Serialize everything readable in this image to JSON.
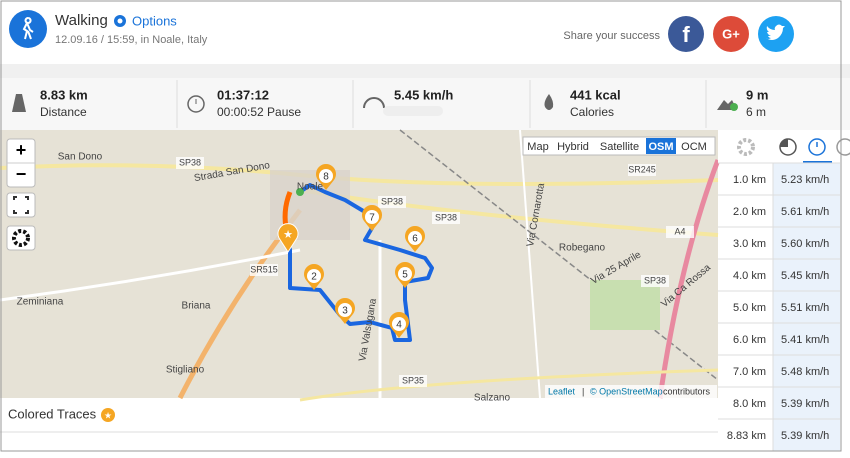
{
  "header": {
    "activity": "Walking",
    "options": "Options",
    "datetime": "12.09.16 / 15:59, in Noale, Italy",
    "share": "Share your success",
    "social": [
      "f",
      "G+"
    ]
  },
  "stats": [
    {
      "value": "8.83 km",
      "label": "Distance"
    },
    {
      "value": "01:37:12",
      "label": "00:00:52 Pause"
    },
    {
      "value": "5.45 km/h"
    },
    {
      "value": "441 kcal",
      "label": "Calories"
    },
    {
      "value": "9 m",
      "label": "6 m"
    }
  ],
  "map": {
    "zoom_in": "+",
    "zoom_out": "−",
    "layers": [
      "Map",
      "Hybrid",
      "Satellite",
      "OSM",
      "OCM"
    ],
    "active_layer": "OSM",
    "attribution_link": "Leaflet",
    "attribution_sep": "|",
    "attribution": "© OpenStreetMap",
    "attribution_suffix": "contributors",
    "places": [
      "San Dono",
      "SP38",
      "Strada San Dono",
      "Noale",
      "SP38",
      "SP38",
      "SR245",
      "Robegano",
      "Via Cornarotta",
      "Via 25 Aprile",
      "A4",
      "Via Ca Rossa",
      "SR515",
      "Zeminiana",
      "Briana",
      "Stigliano",
      "SP35",
      "Salzano",
      "Via Valsugana",
      "SP38"
    ],
    "markers": [
      "2",
      "3",
      "4",
      "5",
      "6",
      "7",
      "8"
    ]
  },
  "splits": {
    "rows": [
      [
        "1.0 km",
        "5.23 km/h"
      ],
      [
        "2.0 km",
        "5.61 km/h"
      ],
      [
        "3.0 km",
        "5.60 km/h"
      ],
      [
        "4.0 km",
        "5.45 km/h"
      ],
      [
        "5.0 km",
        "5.51 km/h"
      ],
      [
        "6.0 km",
        "5.41 km/h"
      ],
      [
        "7.0 km",
        "5.48 km/h"
      ],
      [
        "8.0 km",
        "5.39 km/h"
      ],
      [
        "8.83 km",
        "5.39 km/h"
      ]
    ]
  },
  "footer": {
    "colored_traces": "Colored Traces"
  }
}
